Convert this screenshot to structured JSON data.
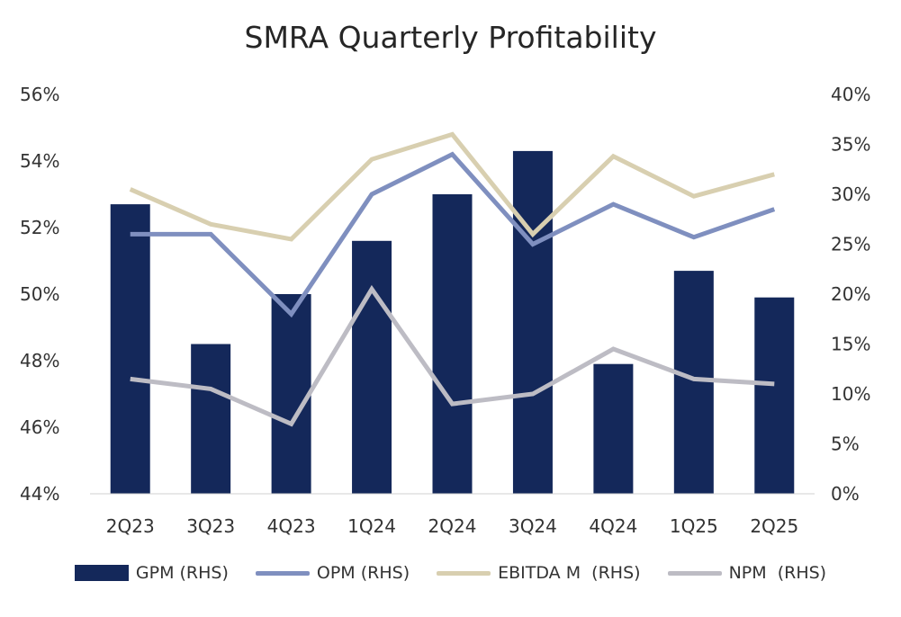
{
  "chart_data": {
    "type": "bar",
    "title": "SMRA Quarterly Profitability",
    "categories": [
      "2Q23",
      "3Q23",
      "4Q23",
      "1Q24",
      "2Q24",
      "3Q24",
      "4Q24",
      "1Q25",
      "2Q25"
    ],
    "left_axis": {
      "ylim": [
        44,
        56
      ],
      "ticks": [
        44,
        46,
        48,
        50,
        52,
        54,
        56
      ],
      "tick_labels": [
        "44%",
        "46%",
        "48%",
        "50%",
        "52%",
        "54%",
        "56%"
      ]
    },
    "right_axis": {
      "ylim": [
        0,
        40
      ],
      "ticks": [
        0,
        5,
        10,
        15,
        20,
        25,
        30,
        35,
        40
      ],
      "tick_labels": [
        "0%",
        "5%",
        "10%",
        "15%",
        "20%",
        "25%",
        "30%",
        "35%",
        "40%"
      ]
    },
    "series": [
      {
        "name": "GPM (RHS)",
        "type": "bar",
        "axis": "left",
        "color": "#14285a",
        "values": [
          52.7,
          48.5,
          50.0,
          51.6,
          53.0,
          54.3,
          47.9,
          50.7,
          49.9
        ]
      },
      {
        "name": "OPM (RHS)",
        "type": "line",
        "axis": "right",
        "color": "#7f8fbf",
        "values": [
          26.0,
          26.0,
          18.0,
          30.0,
          34.0,
          25.0,
          29.0,
          25.7,
          28.5
        ]
      },
      {
        "name": "EBITDA M  (RHS)",
        "type": "line",
        "axis": "right",
        "color": "#d8cfb0",
        "values": [
          30.5,
          27.0,
          25.5,
          33.5,
          36.0,
          26.0,
          33.8,
          29.8,
          32.0
        ]
      },
      {
        "name": "NPM  (RHS)",
        "type": "line",
        "axis": "right",
        "color": "#bdbcc4",
        "values": [
          11.5,
          10.5,
          7.0,
          20.5,
          9.0,
          10.0,
          14.5,
          11.5,
          11.0
        ]
      }
    ],
    "grid": false,
    "legend_position": "bottom"
  }
}
